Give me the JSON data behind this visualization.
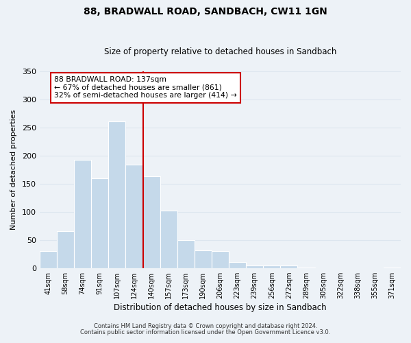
{
  "title": "88, BRADWALL ROAD, SANDBACH, CW11 1GN",
  "subtitle": "Size of property relative to detached houses in Sandbach",
  "xlabel": "Distribution of detached houses by size in Sandbach",
  "ylabel": "Number of detached properties",
  "bar_labels": [
    "41sqm",
    "58sqm",
    "74sqm",
    "91sqm",
    "107sqm",
    "124sqm",
    "140sqm",
    "157sqm",
    "173sqm",
    "190sqm",
    "206sqm",
    "223sqm",
    "239sqm",
    "256sqm",
    "272sqm",
    "289sqm",
    "305sqm",
    "322sqm",
    "338sqm",
    "355sqm",
    "371sqm"
  ],
  "bar_values": [
    30,
    65,
    193,
    160,
    261,
    184,
    163,
    102,
    50,
    31,
    30,
    11,
    4,
    4,
    5,
    1,
    0,
    0,
    0,
    0,
    1
  ],
  "bar_color": "#c5d9ea",
  "property_line_label": "88 BRADWALL ROAD: 137sqm",
  "annotation_line1": "← 67% of detached houses are smaller (861)",
  "annotation_line2": "32% of semi-detached houses are larger (414) →",
  "ylim": [
    0,
    350
  ],
  "yticks": [
    0,
    50,
    100,
    150,
    200,
    250,
    300,
    350
  ],
  "footer1": "Contains HM Land Registry data © Crown copyright and database right 2024.",
  "footer2": "Contains public sector information licensed under the Open Government Licence v3.0.",
  "line_color": "#cc0000",
  "grid_color": "#dde6ef",
  "background_color": "#edf2f7"
}
